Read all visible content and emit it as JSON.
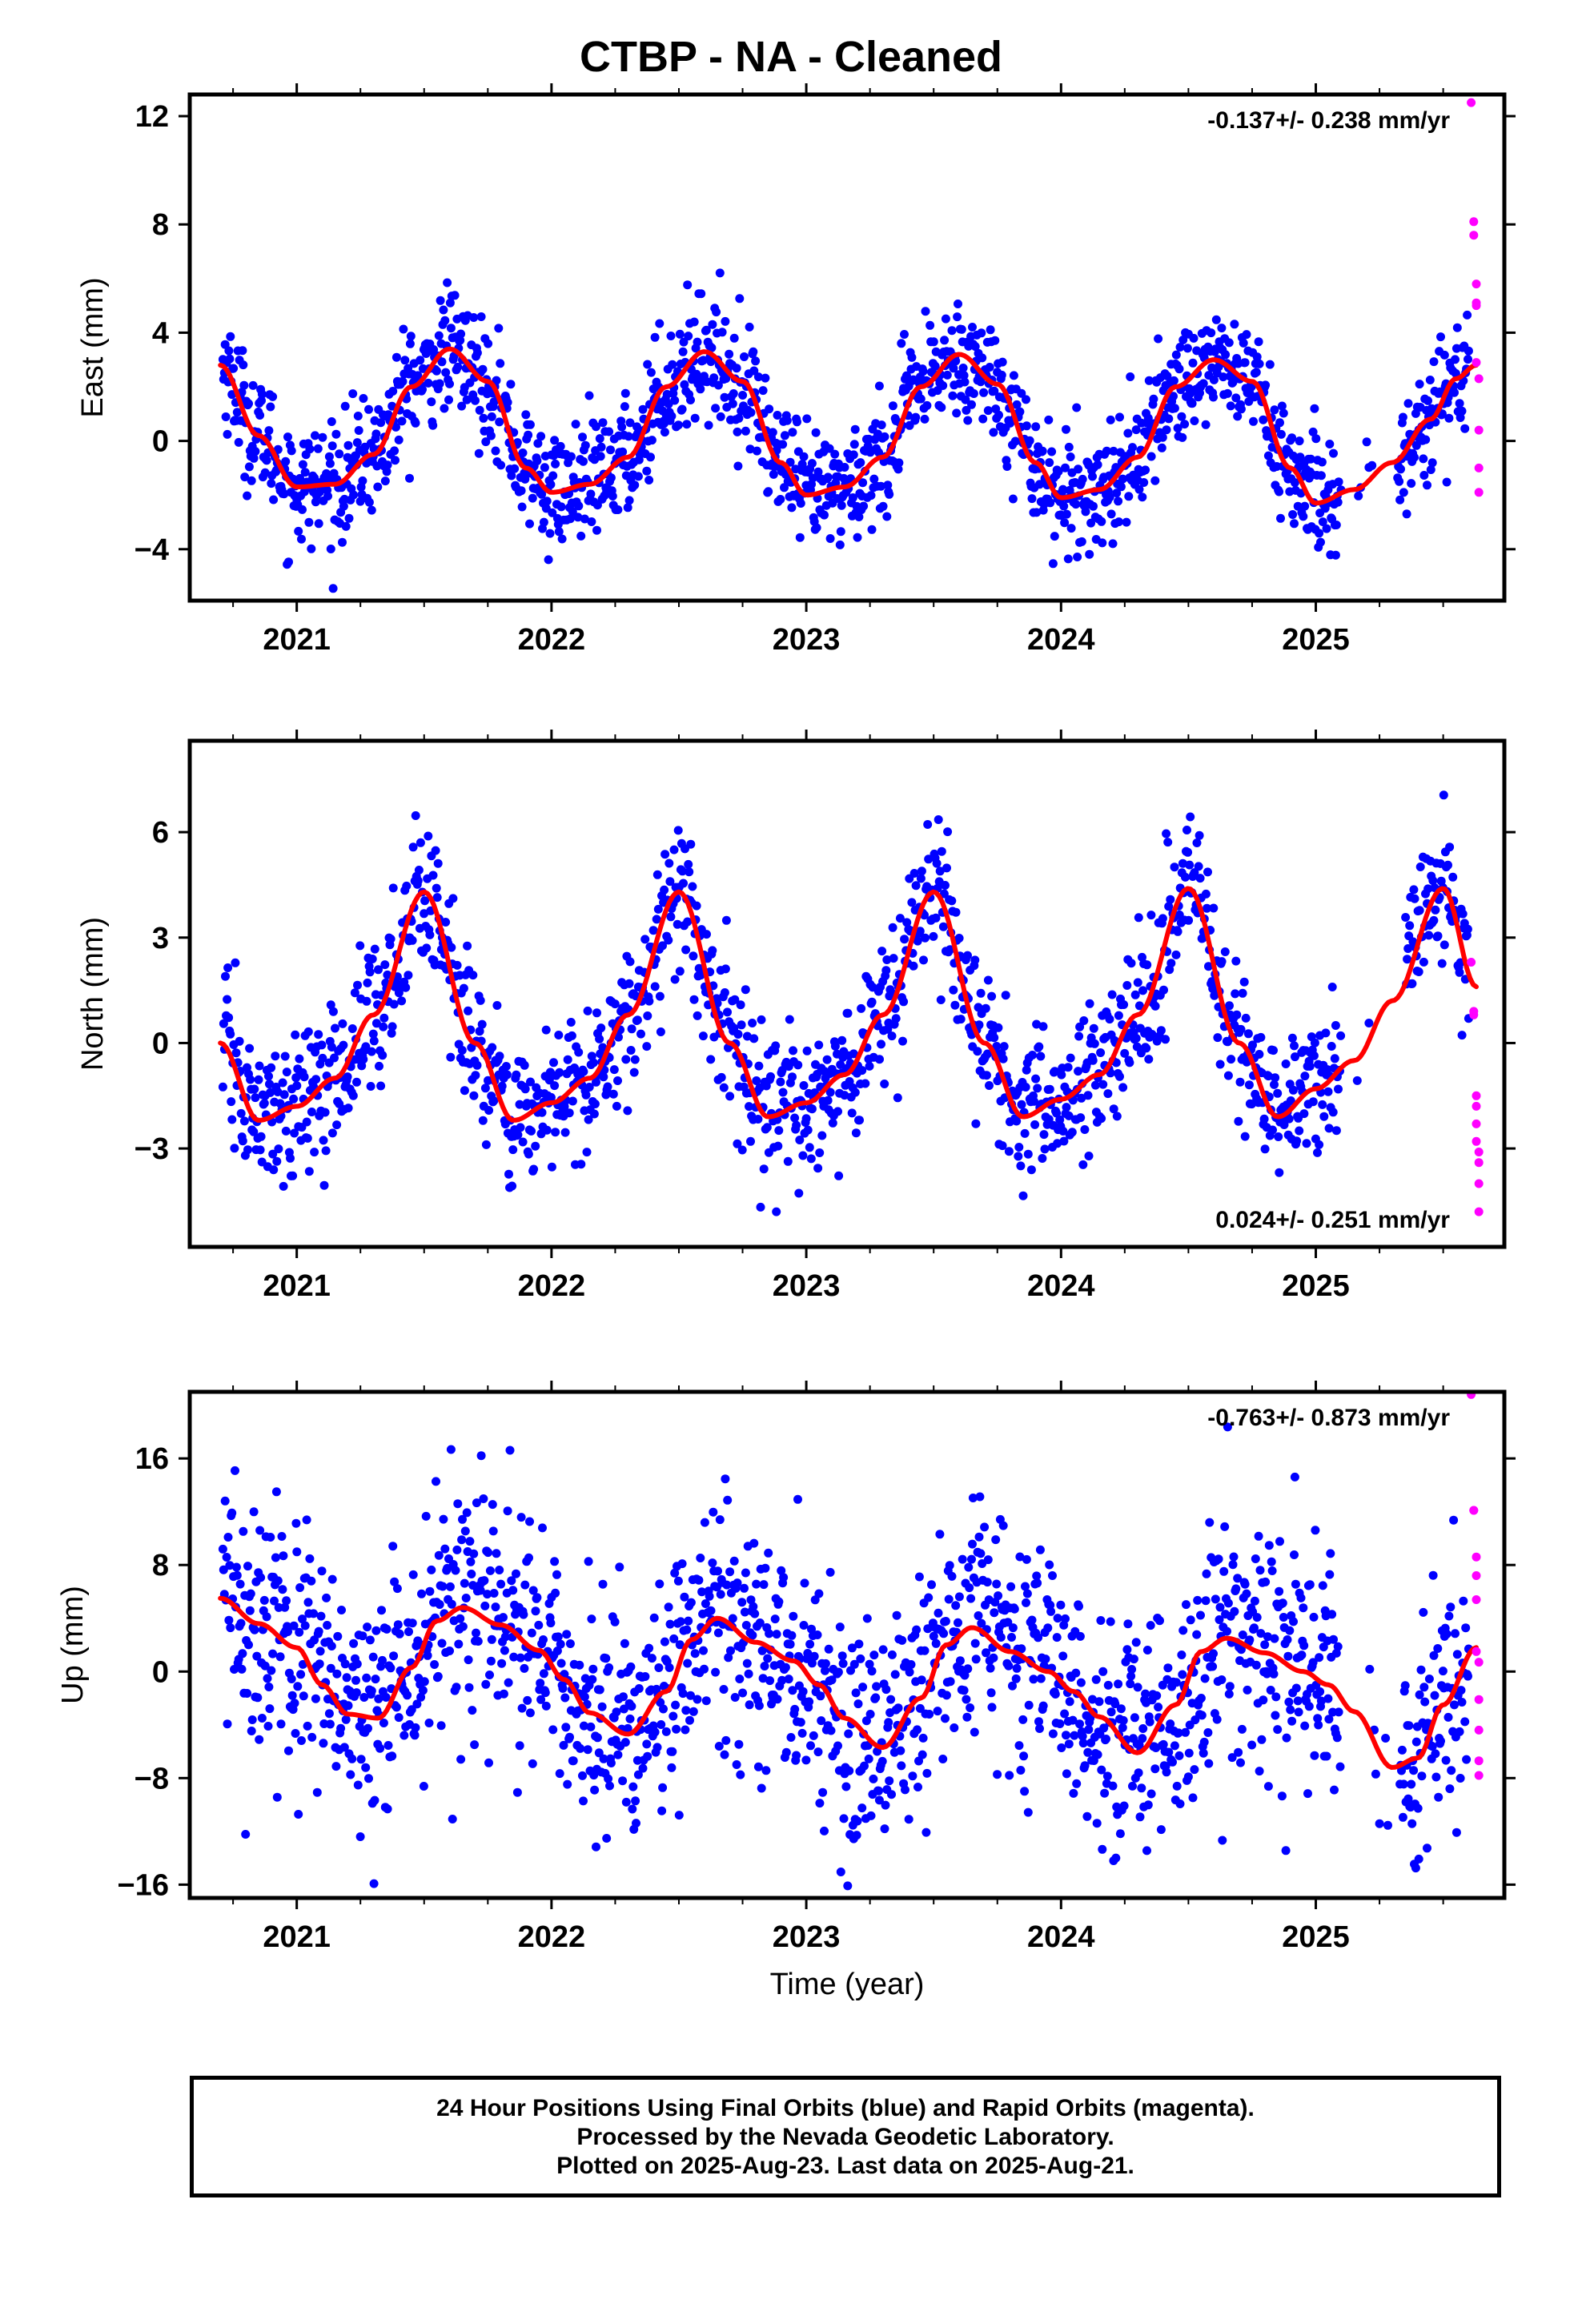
{
  "title": "CTBP  - NA - Cleaned",
  "footer": {
    "line1": "24 Hour Positions Using Final Orbits (blue) and Rapid Orbits (magenta).",
    "line2": "Processed by the Nevada Geodetic Laboratory.",
    "line3": "Plotted on 2025-Aug-23. Last data on 2025-Aug-21."
  },
  "colors": {
    "final": "#0000ff",
    "rapid": "#ff00ff",
    "model": "#ff0000",
    "axes": "#000000"
  },
  "chart_data": [
    {
      "type": "scatter",
      "ylabel": "East (mm)",
      "xlabel": "",
      "xlim": [
        2020.58,
        2025.74
      ],
      "ylim": [
        -5.9,
        12.8
      ],
      "yticks": [
        -4,
        0,
        4,
        8,
        12
      ],
      "ytick_labels": [
        "−4",
        "0",
        "4",
        "8",
        "12"
      ],
      "xticks": [
        2021,
        2022,
        2023,
        2024,
        2025
      ],
      "xtick_labels": [
        "2021",
        "2022",
        "2023",
        "2024",
        "2025"
      ],
      "rate": "-0.137+/- 0.238 mm/yr",
      "rate_position": "top-right",
      "model": {
        "name": "seasonal fit",
        "x": [
          2020.7,
          2020.85,
          2021.0,
          2021.15,
          2021.3,
          2021.45,
          2021.6,
          2021.75,
          2021.9,
          2022.0,
          2022.15,
          2022.3,
          2022.45,
          2022.6,
          2022.75,
          2022.9,
          2023.0,
          2023.15,
          2023.3,
          2023.45,
          2023.6,
          2023.75,
          2023.9,
          2024.0,
          2024.15,
          2024.3,
          2024.45,
          2024.6,
          2024.75,
          2024.9,
          2025.0,
          2025.15,
          2025.3,
          2025.45,
          2025.55,
          2025.63
        ],
        "y": [
          2.8,
          0.2,
          -1.7,
          -1.6,
          -0.5,
          2.0,
          3.4,
          2.2,
          -1.0,
          -1.9,
          -1.6,
          -0.6,
          2.0,
          3.3,
          2.2,
          -0.8,
          -2.0,
          -1.7,
          -0.6,
          2.0,
          3.2,
          2.1,
          -0.8,
          -2.1,
          -1.8,
          -0.6,
          2.0,
          3.0,
          2.2,
          -1.0,
          -2.3,
          -1.8,
          -0.8,
          0.8,
          2.3,
          2.8
        ]
      },
      "final": {
        "x_start": 2020.71,
        "x_end": 2025.6,
        "count": 1650,
        "gaps": [
          [
            2025.09,
            2025.32
          ]
        ],
        "scatter": 1.1
      },
      "rapid": {
        "x": [
          2025.61,
          2025.62,
          2025.62,
          2025.63,
          2025.63,
          2025.63,
          2025.63,
          2025.64,
          2025.64,
          2025.64,
          2025.64
        ],
        "y": [
          12.5,
          8.1,
          7.6,
          5.8,
          5.1,
          5.0,
          2.9,
          2.3,
          0.4,
          -1.0,
          -1.9
        ]
      }
    },
    {
      "type": "scatter",
      "ylabel": "North (mm)",
      "xlabel": "",
      "xlim": [
        2020.58,
        2025.74
      ],
      "ylim": [
        -5.8,
        8.6
      ],
      "yticks": [
        -3,
        0,
        3,
        6
      ],
      "ytick_labels": [
        "−3",
        "0",
        "3",
        "6"
      ],
      "xticks": [
        2021,
        2022,
        2023,
        2024,
        2025
      ],
      "xtick_labels": [
        "2021",
        "2022",
        "2023",
        "2024",
        "2025"
      ],
      "rate": "0.024+/- 0.251 mm/yr",
      "rate_position": "bottom-right",
      "model": {
        "name": "seasonal fit",
        "x": [
          2020.7,
          2020.85,
          2021.0,
          2021.15,
          2021.3,
          2021.5,
          2021.7,
          2021.85,
          2022.0,
          2022.15,
          2022.3,
          2022.5,
          2022.7,
          2022.85,
          2023.0,
          2023.15,
          2023.3,
          2023.5,
          2023.7,
          2023.85,
          2024.0,
          2024.15,
          2024.3,
          2024.5,
          2024.7,
          2024.85,
          2025.0,
          2025.15,
          2025.3,
          2025.5,
          2025.63
        ],
        "y": [
          0.0,
          -2.2,
          -1.8,
          -1.0,
          0.8,
          4.3,
          0.0,
          -2.2,
          -1.7,
          -1.0,
          0.8,
          4.3,
          0.0,
          -2.1,
          -1.7,
          -0.9,
          0.8,
          4.3,
          0.0,
          -2.1,
          -1.6,
          -0.9,
          0.8,
          4.4,
          0.0,
          -2.1,
          -1.3,
          -0.5,
          1.2,
          4.4,
          1.6
        ]
      },
      "final": {
        "x_start": 2020.71,
        "x_end": 2025.6,
        "count": 1500,
        "gaps": [
          [
            2025.1,
            2025.35
          ]
        ],
        "scatter": 1.05
      },
      "rapid": {
        "x": [
          2025.61,
          2025.62,
          2025.62,
          2025.63,
          2025.63,
          2025.63,
          2025.63,
          2025.64,
          2025.64,
          2025.64,
          2025.64
        ],
        "y": [
          2.3,
          0.9,
          0.8,
          -1.5,
          -1.8,
          -2.3,
          -2.8,
          -3.1,
          -3.4,
          -4.0,
          -4.8
        ]
      }
    },
    {
      "type": "scatter",
      "ylabel": "Up (mm)",
      "xlabel": "Time (year)",
      "xlim": [
        2020.58,
        2025.74
      ],
      "ylim": [
        -17,
        21
      ],
      "yticks": [
        -16,
        -8,
        0,
        8,
        16
      ],
      "ytick_labels": [
        "−16",
        "−8",
        "0",
        "8",
        "16"
      ],
      "xticks": [
        2021,
        2022,
        2023,
        2024,
        2025
      ],
      "xtick_labels": [
        "2021",
        "2022",
        "2023",
        "2024",
        "2025"
      ],
      "rate": "-0.763+/- 0.873 mm/yr",
      "rate_position": "top-right",
      "model": {
        "name": "seasonal fit",
        "x": [
          2020.7,
          2020.85,
          2021.0,
          2021.1,
          2021.2,
          2021.32,
          2021.45,
          2021.55,
          2021.65,
          2021.8,
          2021.95,
          2022.05,
          2022.15,
          2022.3,
          2022.45,
          2022.55,
          2022.65,
          2022.8,
          2022.95,
          2023.05,
          2023.15,
          2023.3,
          2023.45,
          2023.55,
          2023.65,
          2023.8,
          2023.95,
          2024.05,
          2024.15,
          2024.3,
          2024.45,
          2024.55,
          2024.65,
          2024.8,
          2024.95,
          2025.05,
          2025.15,
          2025.3,
          2025.4,
          2025.5,
          2025.63
        ],
        "y": [
          5.5,
          3.6,
          1.8,
          -1.0,
          -3.2,
          -3.5,
          0.3,
          3.8,
          4.8,
          3.5,
          1.6,
          -0.6,
          -3.1,
          -4.7,
          -1.5,
          2.4,
          4.0,
          2.2,
          0.8,
          -1.0,
          -3.5,
          -5.7,
          -2.0,
          2.0,
          3.3,
          1.5,
          0.0,
          -1.5,
          -3.4,
          -6.1,
          -2.5,
          1.5,
          2.5,
          1.4,
          0.0,
          -1.0,
          -3.0,
          -7.2,
          -6.5,
          -2.5,
          1.8
        ]
      },
      "final": {
        "x_start": 2020.71,
        "x_end": 2025.6,
        "count": 1650,
        "gaps": [
          [
            2025.09,
            2025.33
          ]
        ],
        "scatter": 4.6
      },
      "rapid": {
        "x": [
          2025.61,
          2025.62,
          2025.62,
          2025.63,
          2025.63,
          2025.63,
          2025.63,
          2025.64,
          2025.64,
          2025.64,
          2025.64,
          2025.64
        ],
        "y": [
          20.8,
          12.1,
          12.1,
          8.6,
          7.2,
          5.4,
          1.5,
          0.7,
          -2.1,
          -4.4,
          -6.7,
          -7.8
        ]
      }
    }
  ]
}
